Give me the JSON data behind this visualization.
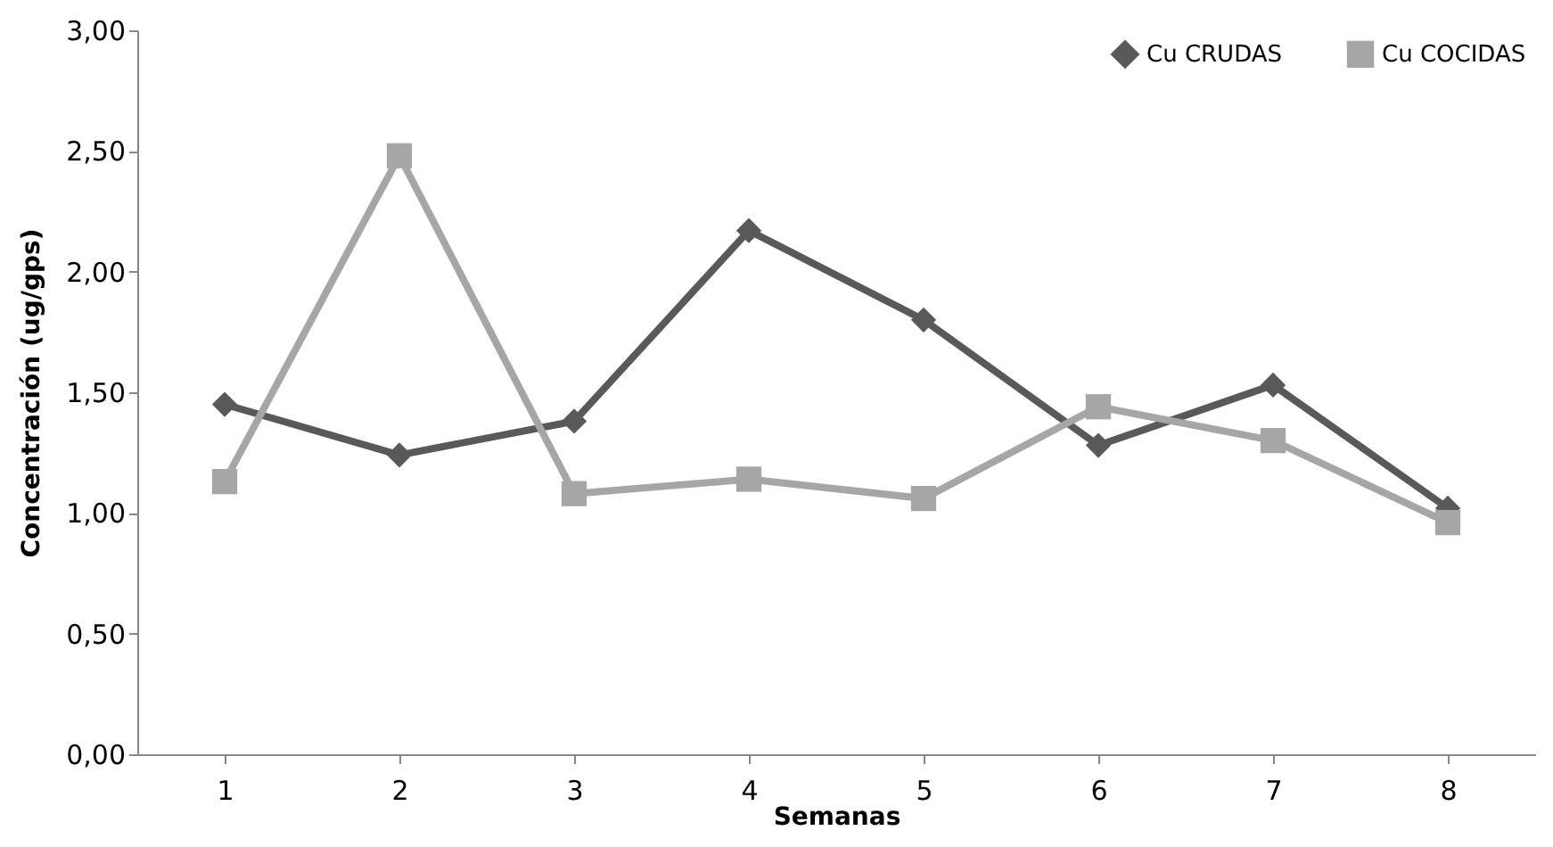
{
  "chart_data": {
    "type": "line",
    "xlabel": "Semanas",
    "ylabel": "Concentración (ug/gps)",
    "categories": [
      "1",
      "2",
      "3",
      "4",
      "5",
      "6",
      "7",
      "8"
    ],
    "series": [
      {
        "name": "Cu CRUDAS",
        "color": "#595959",
        "marker": "diamond",
        "values": [
          1.45,
          1.24,
          1.38,
          2.17,
          1.8,
          1.28,
          1.53,
          1.02
        ]
      },
      {
        "name": "Cu COCIDAS",
        "color": "#a6a6a6",
        "marker": "square",
        "values": [
          1.13,
          2.48,
          1.08,
          1.14,
          1.06,
          1.44,
          1.3,
          0.96
        ]
      }
    ],
    "ylim": [
      0,
      3
    ],
    "yticks": [
      {
        "value": 0,
        "label": "0,00"
      },
      {
        "value": 0.5,
        "label": "0,50"
      },
      {
        "value": 1,
        "label": "1,00"
      },
      {
        "value": 1.5,
        "label": "1,50"
      },
      {
        "value": 2,
        "label": "2,00"
      },
      {
        "value": 2.5,
        "label": "2,50"
      },
      {
        "value": 3,
        "label": "3,00"
      }
    ],
    "grid": false,
    "legend": "top right",
    "line_style": "solid"
  }
}
